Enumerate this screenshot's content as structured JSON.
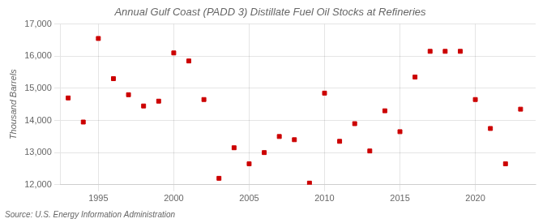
{
  "chart_data": {
    "type": "scatter",
    "title": "Annual Gulf Coast (PADD 3) Distillate Fuel Oil Stocks at Refineries",
    "ylabel": "Thousand Barrels",
    "annotation": "Source: U.S. Energy Information Administration",
    "x": [
      1993,
      1994,
      1995,
      1996,
      1997,
      1998,
      1999,
      2000,
      2001,
      2002,
      2003,
      2004,
      2005,
      2006,
      2007,
      2008,
      2009,
      2010,
      2011,
      2012,
      2013,
      2014,
      2015,
      2016,
      2017,
      2018,
      2019,
      2020,
      2021,
      2022,
      2023
    ],
    "values": [
      14700,
      13950,
      16550,
      15300,
      14800,
      14450,
      14600,
      16100,
      15850,
      14650,
      12200,
      13150,
      12650,
      13000,
      13500,
      13400,
      12050,
      14850,
      13350,
      13900,
      13050,
      14300,
      13650,
      15350,
      16150,
      16150,
      16150,
      14650,
      13750,
      12650,
      14350
    ],
    "color": "#cc0000",
    "marker": "square",
    "xlim": [
      1992.5,
      2024
    ],
    "xticks": [
      1995,
      2000,
      2005,
      2010,
      2015,
      2020
    ],
    "ylim": [
      12000,
      17000
    ],
    "yticks": [
      {
        "value": 12000,
        "label": "12,000"
      },
      {
        "value": 13000,
        "label": "13,000"
      },
      {
        "value": 14000,
        "label": "14,000"
      },
      {
        "value": 15000,
        "label": "15,000"
      },
      {
        "value": 16000,
        "label": "16,000"
      },
      {
        "value": 17000,
        "label": "17,000"
      }
    ],
    "grid": true
  }
}
